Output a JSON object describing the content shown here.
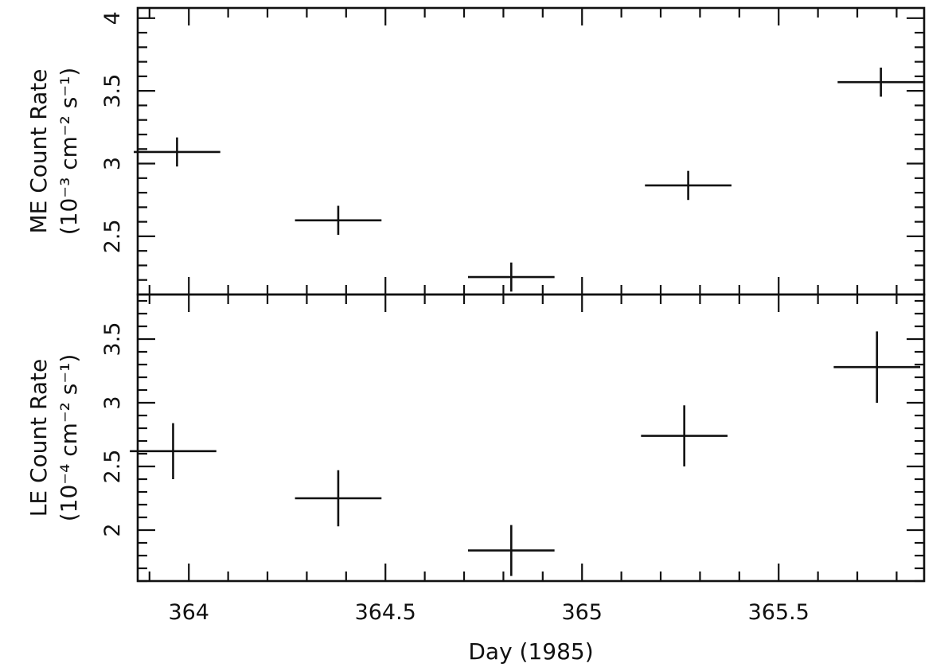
{
  "chart_data": [
    {
      "type": "scatter",
      "panel": "top",
      "ylabel_line1": "ME Count Rate",
      "ylabel_line2": "(10⁻³ cm⁻² s⁻¹)",
      "xlim": [
        363.87,
        365.87
      ],
      "ylim": [
        2.1,
        4.07
      ],
      "yticks": [
        "2.5",
        "3",
        "3.5",
        "4"
      ],
      "grid": false,
      "points": [
        {
          "x": 363.97,
          "xerr": 0.11,
          "y": 3.08,
          "yerr": 0.1
        },
        {
          "x": 364.38,
          "xerr": 0.11,
          "y": 2.61,
          "yerr": 0.1
        },
        {
          "x": 364.82,
          "xerr": 0.11,
          "y": 2.22,
          "yerr": 0.1
        },
        {
          "x": 365.27,
          "xerr": 0.11,
          "y": 2.85,
          "yerr": 0.1
        },
        {
          "x": 365.76,
          "xerr": 0.11,
          "y": 3.56,
          "yerr": 0.1
        }
      ]
    },
    {
      "type": "scatter",
      "panel": "bottom",
      "ylabel_line1": "LE Count Rate",
      "ylabel_line2": "(10⁻⁴ cm⁻² s⁻¹)",
      "xlabel": "Day (1985)",
      "xlim": [
        363.87,
        365.87
      ],
      "ylim": [
        1.6,
        3.85
      ],
      "xticks": [
        "364",
        "364.5",
        "365",
        "365.5"
      ],
      "yticks": [
        "2",
        "2.5",
        "3",
        "3.5"
      ],
      "grid": false,
      "points": [
        {
          "x": 363.96,
          "xerr": 0.11,
          "y": 2.62,
          "yerr": 0.22
        },
        {
          "x": 364.38,
          "xerr": 0.11,
          "y": 2.25,
          "yerr": 0.22
        },
        {
          "x": 364.82,
          "xerr": 0.11,
          "y": 1.84,
          "yerr": 0.2
        },
        {
          "x": 365.26,
          "xerr": 0.11,
          "y": 2.74,
          "yerr": 0.24
        },
        {
          "x": 365.75,
          "xerr": 0.11,
          "y": 3.28,
          "yerr": 0.28
        }
      ]
    }
  ]
}
